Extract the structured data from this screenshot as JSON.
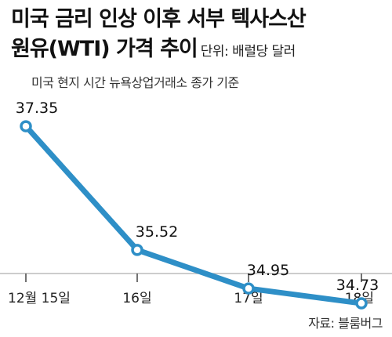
{
  "title_line1": "미국 금리 인상 이후 서부 텍사스산",
  "title_line2": "원유(WTI) 가격 추이",
  "unit": "단위: 배럴당 달러",
  "subtitle": "미국 현지 시간 뉴욕상업거래소 종가 기준",
  "source": "자료: 블룸버그",
  "line_color": "#2e8fc7",
  "chart_data": {
    "type": "line",
    "title": "미국 금리 인상 이후 서부 텍사스산 원유(WTI) 가격 추이",
    "ylabel": "",
    "xlabel": "",
    "unit": "배럴당 달러",
    "categories": [
      "12월 15일",
      "16일",
      "17일",
      "18일"
    ],
    "values": [
      37.35,
      35.52,
      34.95,
      34.73
    ],
    "data_labels": [
      "37.35",
      "35.52",
      "34.95",
      "34.73"
    ],
    "ylim": [
      34.0,
      38.0
    ],
    "grid": false,
    "legend": "none"
  }
}
